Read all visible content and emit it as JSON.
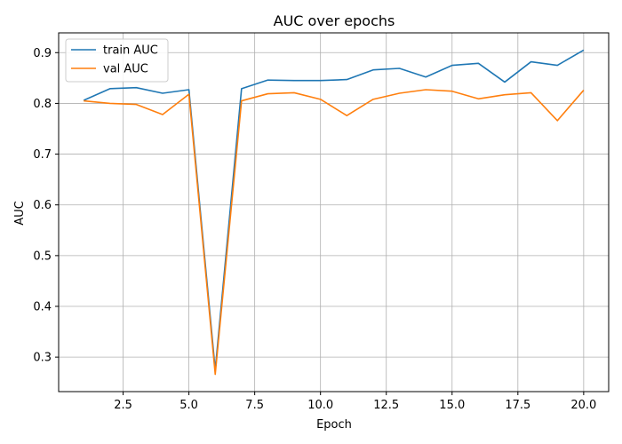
{
  "chart_data": {
    "type": "line",
    "title": "AUC over epochs",
    "xlabel": "Epoch",
    "ylabel": "AUC",
    "xlim": [
      0.05,
      20.95
    ],
    "ylim": [
      0.232,
      0.939
    ],
    "xticks": [
      2.5,
      5.0,
      7.5,
      10.0,
      12.5,
      15.0,
      17.5,
      20.0
    ],
    "xtick_labels": [
      "2.5",
      "5.0",
      "7.5",
      "10.0",
      "12.5",
      "15.0",
      "17.5",
      "20.0"
    ],
    "yticks": [
      0.3,
      0.4,
      0.5,
      0.6,
      0.7,
      0.8,
      0.9
    ],
    "ytick_labels": [
      "0.3",
      "0.4",
      "0.5",
      "0.6",
      "0.7",
      "0.8",
      "0.9"
    ],
    "grid": true,
    "legend_position": "top-left",
    "x": [
      1,
      2,
      3,
      4,
      5,
      6,
      7,
      8,
      9,
      10,
      11,
      12,
      13,
      14,
      15,
      16,
      17,
      18,
      19,
      20
    ],
    "series": [
      {
        "name": "train AUC",
        "color": "#1f77b4",
        "values": [
          0.806,
          0.829,
          0.831,
          0.82,
          0.827,
          0.275,
          0.829,
          0.846,
          0.845,
          0.845,
          0.847,
          0.866,
          0.869,
          0.852,
          0.875,
          0.879,
          0.842,
          0.882,
          0.875,
          0.905
        ]
      },
      {
        "name": "val AUC",
        "color": "#ff7f0e",
        "values": [
          0.805,
          0.8,
          0.798,
          0.778,
          0.818,
          0.266,
          0.805,
          0.819,
          0.821,
          0.808,
          0.776,
          0.808,
          0.82,
          0.827,
          0.824,
          0.809,
          0.817,
          0.821,
          0.766,
          0.826
        ]
      }
    ]
  }
}
